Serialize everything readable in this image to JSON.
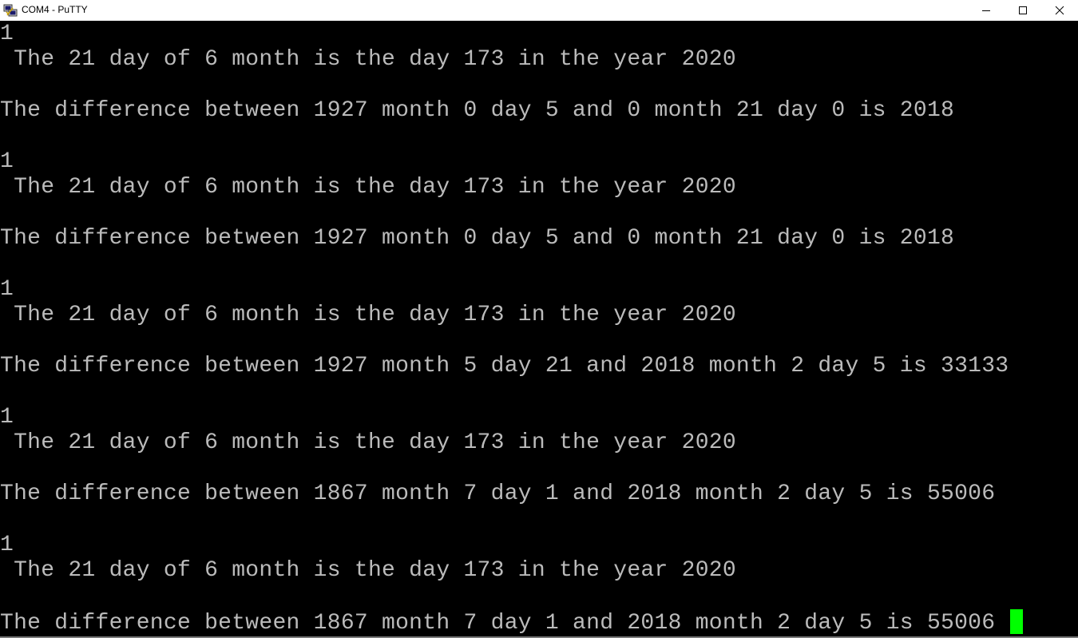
{
  "window": {
    "title": "COM4 - PuTTY",
    "app_icon": "putty-icon",
    "controls": {
      "minimize_icon": "minimize-icon",
      "maximize_icon": "maximize-icon",
      "close_icon": "close-icon"
    }
  },
  "terminal": {
    "foreground": "#bbbbbb",
    "background": "#000000",
    "cursor_color": "#00ff00",
    "lines": [
      "1",
      " The 21 day of 6 month is the day 173 in the year 2020",
      "",
      "The difference between 1927 month 0 day 5 and 0 month 21 day 0 is 2018",
      "",
      "1",
      " The 21 day of 6 month is the day 173 in the year 2020",
      "",
      "The difference between 1927 month 0 day 5 and 0 month 21 day 0 is 2018",
      "",
      "1",
      " The 21 day of 6 month is the day 173 in the year 2020",
      "",
      "The difference between 1927 month 5 day 21 and 2018 month 2 day 5 is 33133",
      "",
      "1",
      " The 21 day of 6 month is the day 173 in the year 2020",
      "",
      "The difference between 1867 month 7 day 1 and 2018 month 2 day 5 is 55006",
      "",
      "1",
      " The 21 day of 6 month is the day 173 in the year 2020",
      "",
      "The difference between 1867 month 7 day 1 and 2018 month 2 day 5 is 55006 "
    ]
  }
}
